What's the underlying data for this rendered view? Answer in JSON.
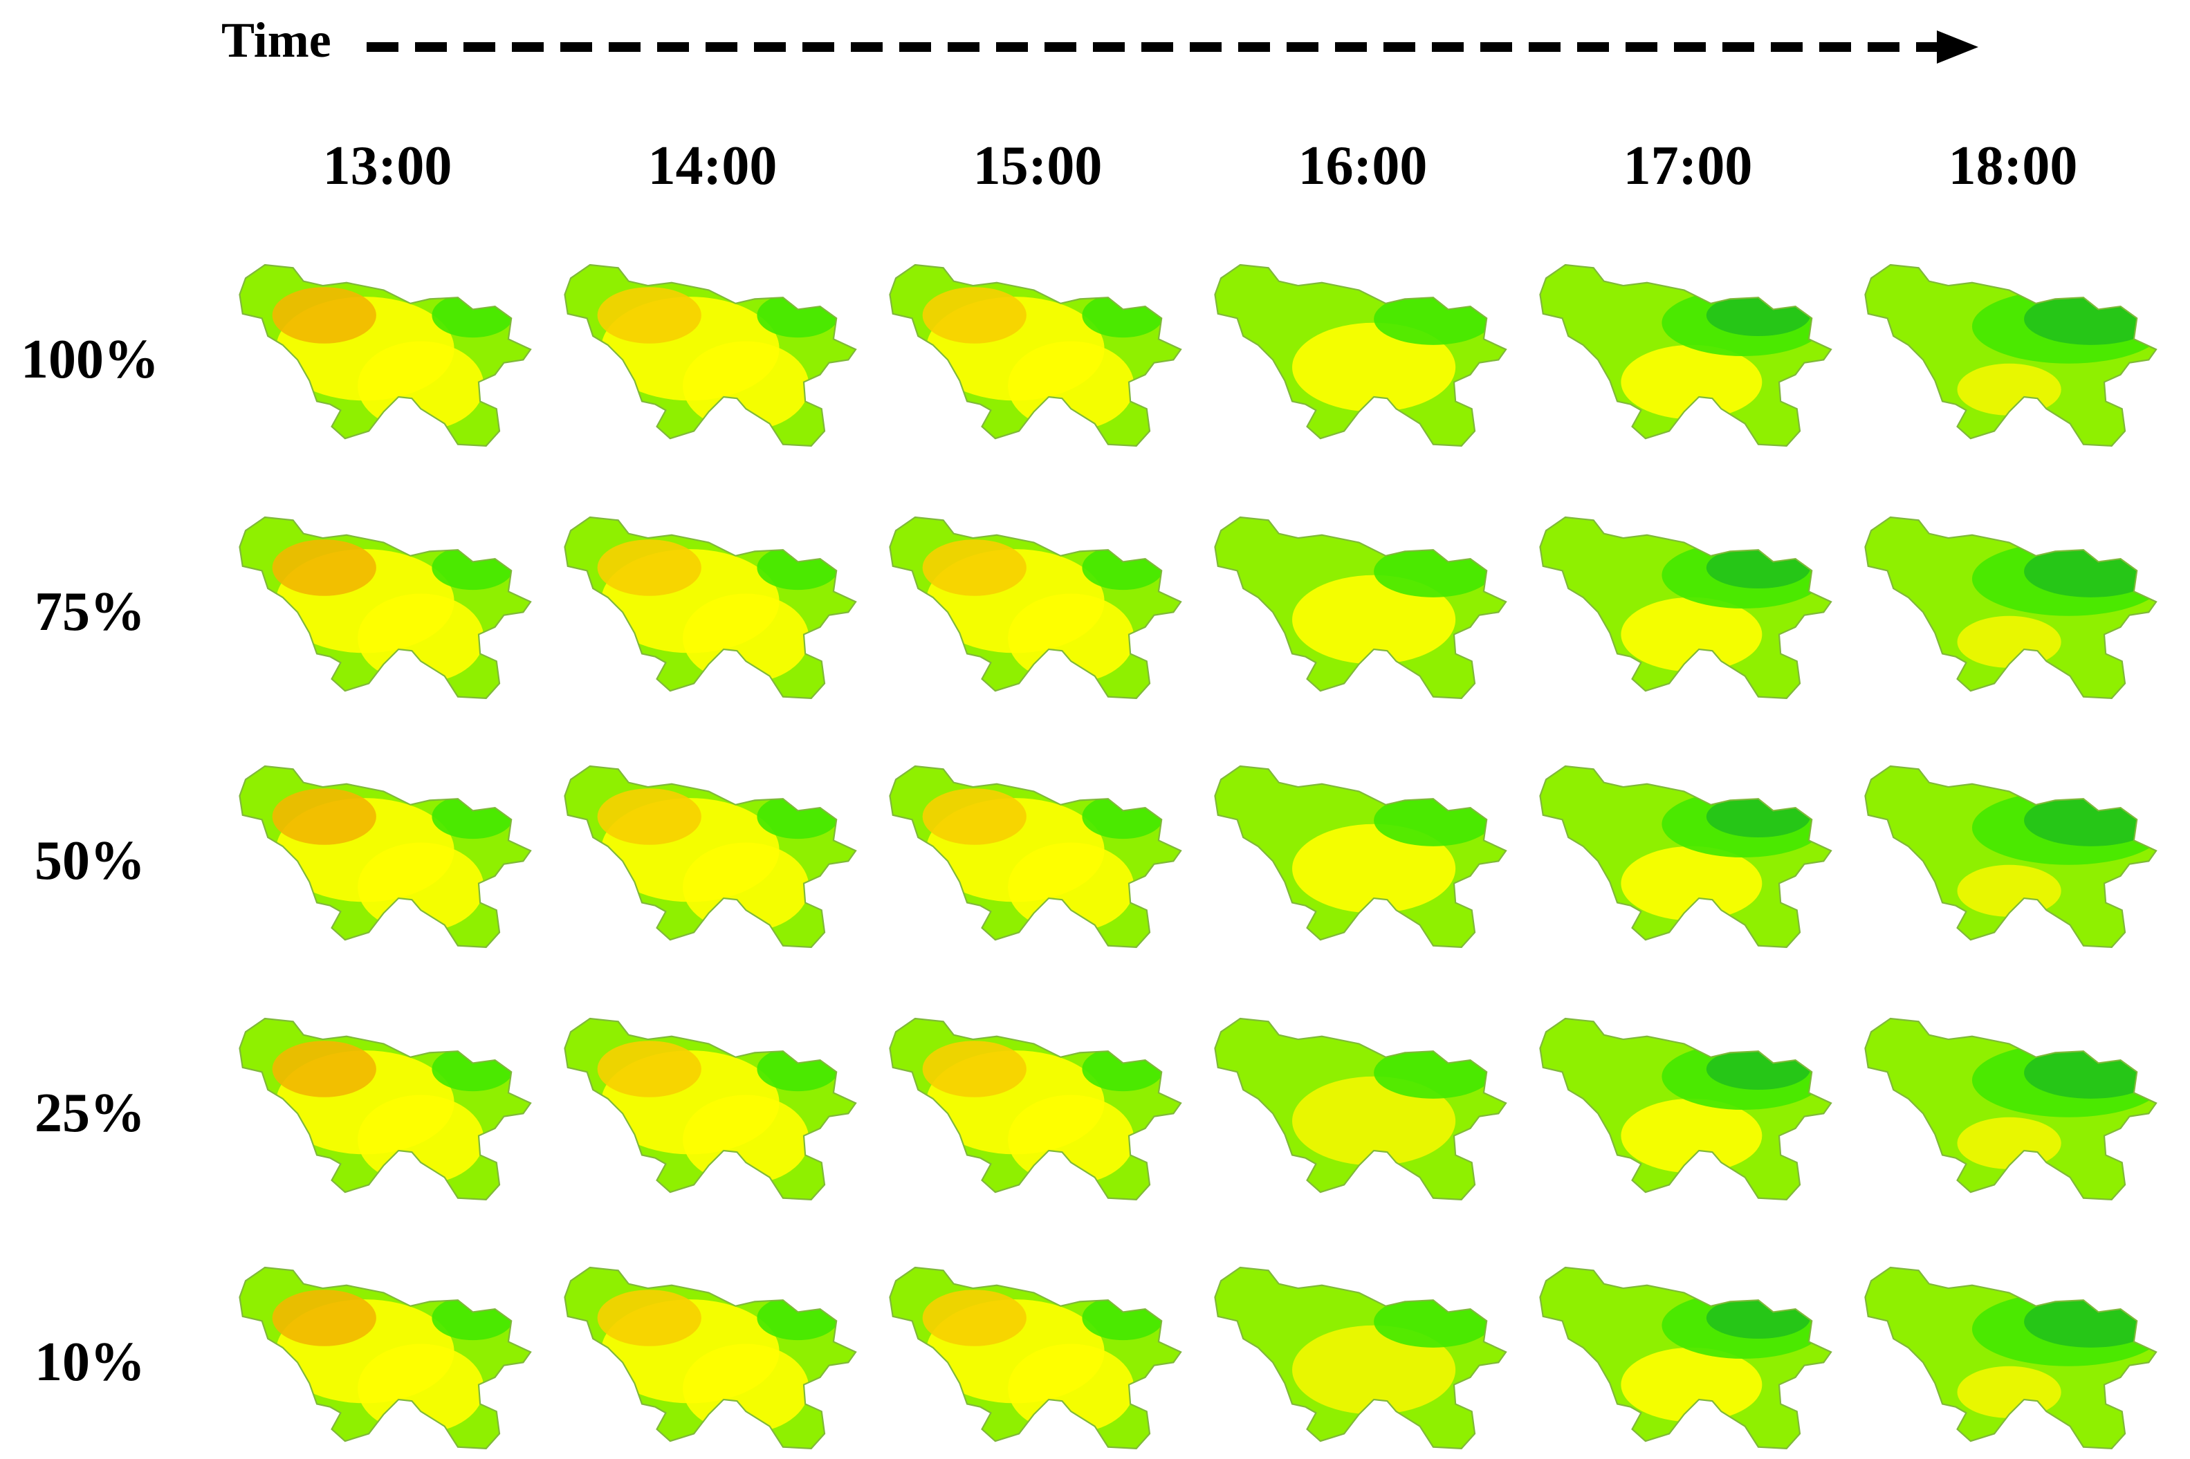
{
  "header": {
    "time_label": "Time"
  },
  "columns": [
    "13:00",
    "14:00",
    "15:00",
    "16:00",
    "17:00",
    "18:00"
  ],
  "rows": [
    "100%",
    "75%",
    "50%",
    "25%",
    "10%"
  ],
  "colors": {
    "border": "#7fb83a",
    "base_green": "#8ff000",
    "yellow": "#ffff00",
    "light_yellow": "#f2f700",
    "orange": "#f2b800",
    "light_orange": "#f7d000",
    "green": "#44e800",
    "dark_green": "#22c21a",
    "bright_green": "#00e01a"
  },
  "panels": [
    [
      "orange",
      "light_orange",
      "yellow",
      "yellow",
      "green",
      "dark_green"
    ],
    [
      "orange",
      "light_orange",
      "yellow",
      "yellow",
      "green",
      "dark_green"
    ],
    [
      "orange",
      "light_orange",
      "yellow",
      "yellow",
      "green",
      "dark_green"
    ],
    [
      "orange",
      "light_orange",
      "yellow",
      "light_yellow",
      "green",
      "dark_green"
    ],
    [
      "orange",
      "light_orange",
      "yellow",
      "light_yellow",
      "green",
      "dark_green"
    ]
  ]
}
